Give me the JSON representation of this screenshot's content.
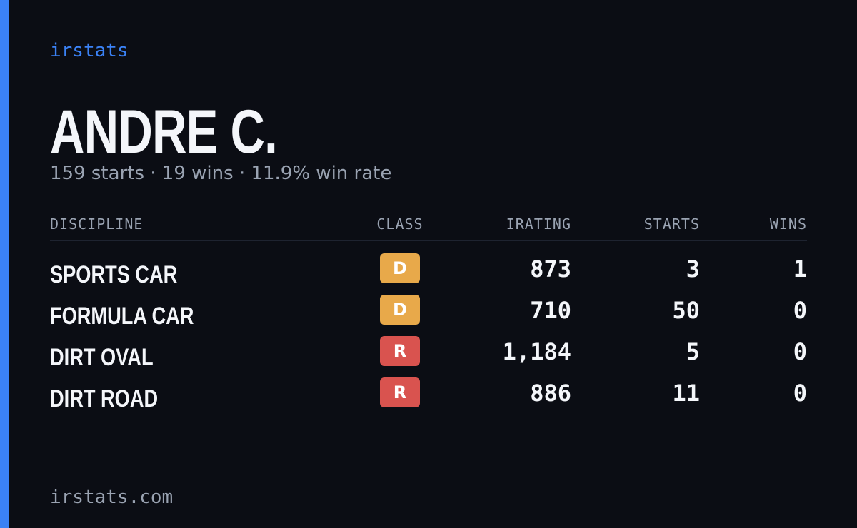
{
  "brand": "irstats",
  "profile": {
    "name": "ANDRE C.",
    "summary": "159 starts · 19 wins · 11.9% win rate"
  },
  "table": {
    "headers": [
      "DISCIPLINE",
      "CLASS",
      "IRATING",
      "STARTS",
      "WINS"
    ],
    "rows": [
      [
        "SPORTS CAR",
        "D",
        "873",
        "3",
        "1"
      ],
      [
        "FORMULA CAR",
        "D",
        "710",
        "50",
        "0"
      ],
      [
        "DIRT OVAL",
        "R",
        "1,184",
        "5",
        "0"
      ],
      [
        "DIRT ROAD",
        "R",
        "886",
        "11",
        "0"
      ]
    ]
  },
  "footer": "irstats.com"
}
